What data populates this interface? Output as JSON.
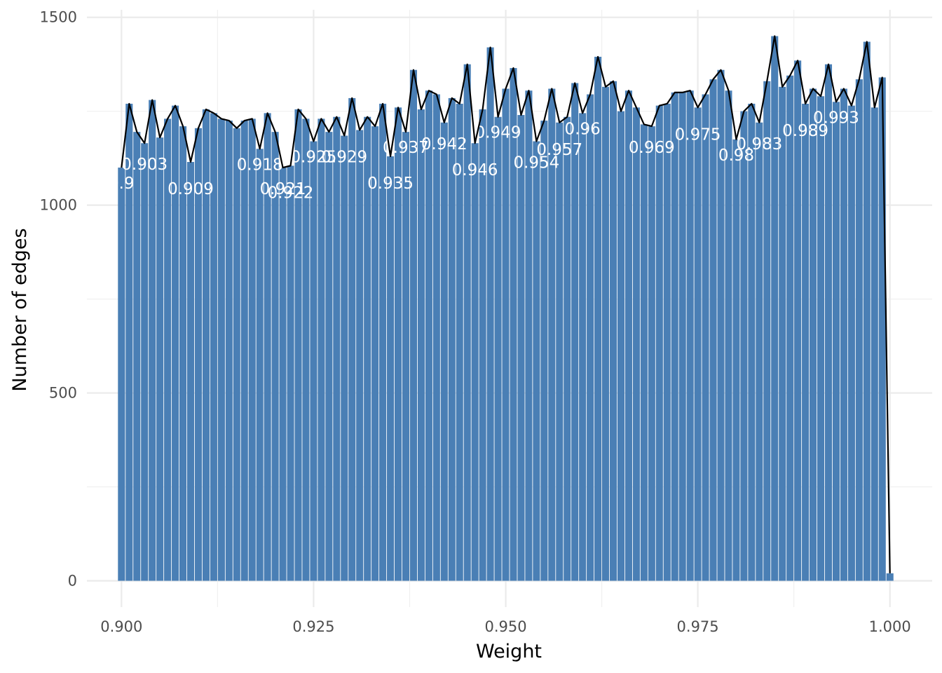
{
  "chart_data": {
    "type": "bar",
    "xlabel": "Weight",
    "ylabel": "Number of edges",
    "xlim": [
      0.8955,
      1.0055
    ],
    "ylim": [
      -70,
      1520
    ],
    "x_ticks": [
      0.9,
      0.925,
      0.95,
      0.975,
      1.0
    ],
    "x_tick_labels": [
      "0.900",
      "0.925",
      "0.950",
      "0.975",
      "1.000"
    ],
    "y_ticks": [
      0,
      500,
      1000,
      1500
    ],
    "y_tick_labels": [
      "0",
      "500",
      "1000",
      "1500"
    ],
    "grid": true,
    "bar_color": "#4a7fb5",
    "line_color": "#000000",
    "bar_width": 0.00092,
    "x": [
      0.9,
      0.901,
      0.902,
      0.903,
      0.904,
      0.905,
      0.906,
      0.907,
      0.908,
      0.909,
      0.91,
      0.911,
      0.912,
      0.913,
      0.914,
      0.915,
      0.916,
      0.917,
      0.918,
      0.919,
      0.92,
      0.921,
      0.922,
      0.923,
      0.924,
      0.925,
      0.926,
      0.927,
      0.928,
      0.929,
      0.93,
      0.931,
      0.932,
      0.933,
      0.934,
      0.935,
      0.936,
      0.937,
      0.938,
      0.939,
      0.94,
      0.941,
      0.942,
      0.943,
      0.944,
      0.945,
      0.946,
      0.947,
      0.948,
      0.949,
      0.95,
      0.951,
      0.952,
      0.953,
      0.954,
      0.955,
      0.956,
      0.957,
      0.958,
      0.959,
      0.96,
      0.961,
      0.962,
      0.963,
      0.964,
      0.965,
      0.966,
      0.967,
      0.968,
      0.969,
      0.97,
      0.971,
      0.972,
      0.973,
      0.974,
      0.975,
      0.976,
      0.977,
      0.978,
      0.979,
      0.98,
      0.981,
      0.982,
      0.983,
      0.984,
      0.985,
      0.986,
      0.987,
      0.988,
      0.989,
      0.99,
      0.991,
      0.992,
      0.993,
      0.994,
      0.995,
      0.996,
      0.997,
      0.998,
      0.999,
      1.0
    ],
    "values": [
      1100,
      1270,
      1195,
      1165,
      1280,
      1180,
      1230,
      1265,
      1210,
      1115,
      1205,
      1255,
      1245,
      1230,
      1225,
      1205,
      1225,
      1230,
      1150,
      1245,
      1195,
      1100,
      1105,
      1255,
      1230,
      1170,
      1230,
      1195,
      1235,
      1185,
      1285,
      1200,
      1235,
      1210,
      1270,
      1130,
      1260,
      1195,
      1360,
      1255,
      1305,
      1295,
      1220,
      1285,
      1270,
      1375,
      1165,
      1255,
      1420,
      1235,
      1310,
      1365,
      1240,
      1305,
      1170,
      1225,
      1310,
      1220,
      1235,
      1325,
      1245,
      1295,
      1395,
      1315,
      1330,
      1250,
      1305,
      1260,
      1215,
      1210,
      1265,
      1270,
      1300,
      1300,
      1305,
      1260,
      1295,
      1335,
      1360,
      1305,
      1175,
      1250,
      1270,
      1220,
      1330,
      1450,
      1315,
      1345,
      1385,
      1270,
      1310,
      1290,
      1375,
      1275,
      1310,
      1265,
      1335,
      1435,
      1260,
      1340,
      20
    ],
    "data_labels": [
      {
        "x": 0.9,
        "text": "0.9"
      },
      {
        "x": 0.903,
        "text": "0.903"
      },
      {
        "x": 0.909,
        "text": "0.909"
      },
      {
        "x": 0.918,
        "text": "0.918"
      },
      {
        "x": 0.921,
        "text": "0.921"
      },
      {
        "x": 0.922,
        "text": "0.922"
      },
      {
        "x": 0.925,
        "text": "0.925"
      },
      {
        "x": 0.929,
        "text": "0.929"
      },
      {
        "x": 0.935,
        "text": "0.935"
      },
      {
        "x": 0.937,
        "text": "0.937"
      },
      {
        "x": 0.942,
        "text": "0.942"
      },
      {
        "x": 0.946,
        "text": "0.946"
      },
      {
        "x": 0.949,
        "text": "0.949"
      },
      {
        "x": 0.954,
        "text": "0.954"
      },
      {
        "x": 0.957,
        "text": "0.957"
      },
      {
        "x": 0.96,
        "text": "0.96"
      },
      {
        "x": 0.969,
        "text": "0.969"
      },
      {
        "x": 0.975,
        "text": "0.975"
      },
      {
        "x": 0.98,
        "text": "0.98"
      },
      {
        "x": 0.983,
        "text": "0.983"
      },
      {
        "x": 0.989,
        "text": "0.989"
      },
      {
        "x": 0.993,
        "text": "0.993"
      }
    ]
  }
}
